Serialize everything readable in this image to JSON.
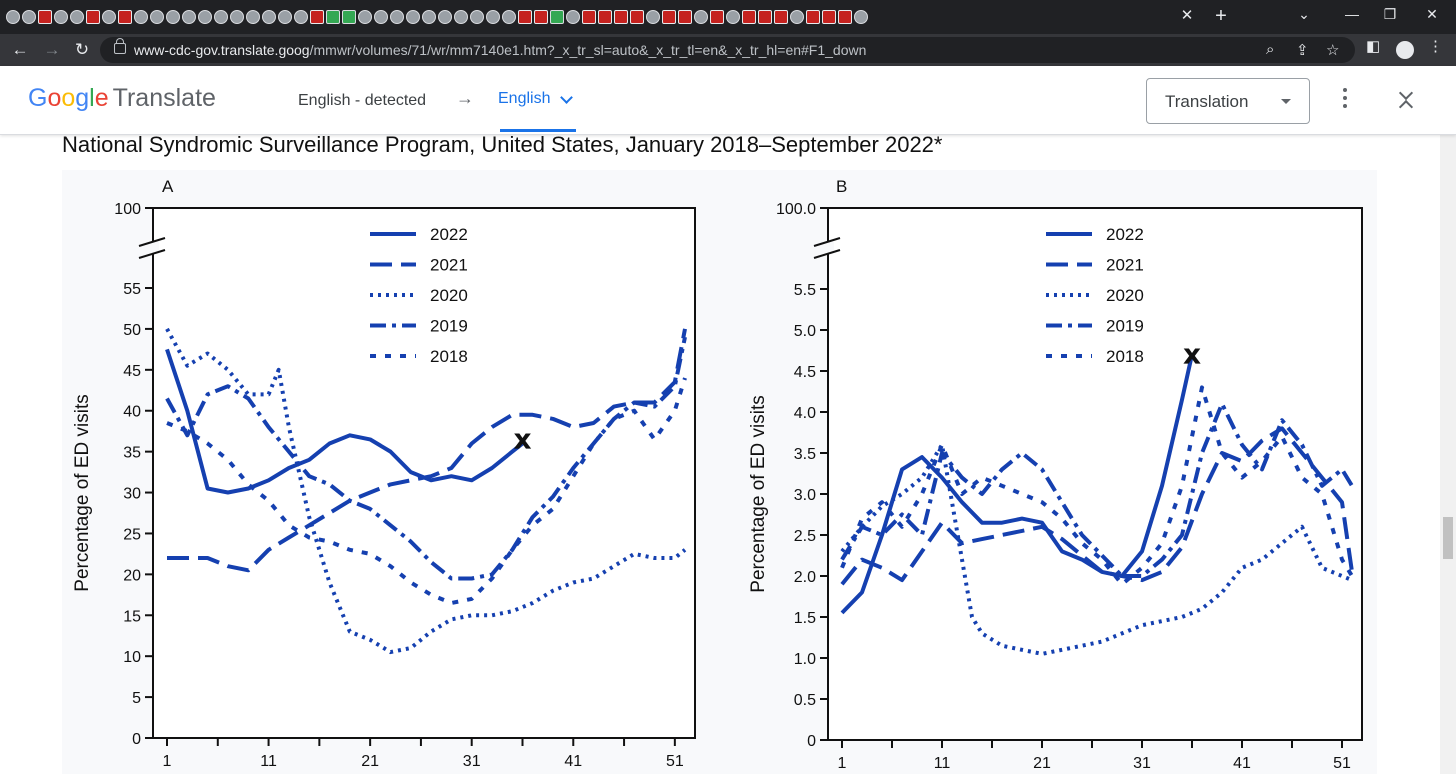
{
  "browser": {
    "tab_favicons": [
      "globe",
      "globe",
      "b",
      "globe",
      "globe",
      "b",
      "globe",
      "b",
      "globe",
      "globe",
      "globe",
      "globe",
      "globe",
      "globe",
      "globe",
      "globe",
      "globe",
      "globe",
      "globe",
      "yt",
      "green",
      "green",
      "globe",
      "globe",
      "globe",
      "globe",
      "globe",
      "globe",
      "globe",
      "globe",
      "globe",
      "globe",
      "b",
      "yt",
      "green",
      "globe",
      "b",
      "b",
      "b",
      "b",
      "globe",
      "b",
      "b",
      "globe",
      "b",
      "globe",
      "b",
      "b",
      "b",
      "globe",
      "b",
      "yt",
      "b",
      "globe"
    ],
    "new_tab": "+",
    "close_tab": "✕",
    "url_host": "www-cdc-gov.translate.goog",
    "url_path": "/mmwr/volumes/71/wr/mm7140e1.htm?_x_tr_sl=auto&_x_tr_tl=en&_x_tr_hl=en#F1_down"
  },
  "translate_bar": {
    "logo_word": "Translate",
    "source_language": "English - detected",
    "arrow": "→",
    "target_language": "English",
    "mode_select": "Translation"
  },
  "page": {
    "heading": "National Syndromic Surveillance Program, United States, January 2018–September 2022*"
  },
  "chart_data": [
    {
      "panel_label": "A",
      "type": "line",
      "ylabel": "Percentage of ED visits",
      "ylim": [
        0,
        55
      ],
      "y_break_top": "100",
      "y_ticks": [
        "0",
        "5",
        "10",
        "15",
        "20",
        "25",
        "30",
        "35",
        "40",
        "45",
        "50",
        "55"
      ],
      "xlim": [
        1,
        52
      ],
      "x_ticks": [
        "1",
        "11",
        "21",
        "31",
        "41",
        "51"
      ],
      "legend": {
        "placement": "top-center"
      },
      "marker": {
        "label": "x",
        "x": 36,
        "y": 36.5
      },
      "series": [
        {
          "name": "2022",
          "style": "solid",
          "x": [
            1,
            3,
            5,
            7,
            9,
            11,
            13,
            15,
            17,
            19,
            21,
            23,
            25,
            27,
            29,
            31,
            33,
            35,
            36
          ],
          "y": [
            47.5,
            40,
            30.5,
            30,
            30.5,
            31.5,
            33,
            34,
            36,
            37,
            36.5,
            35,
            32.5,
            31.5,
            32,
            31.5,
            33,
            35,
            36
          ]
        },
        {
          "name": "2021",
          "style": "long-dash",
          "x": [
            1,
            3,
            5,
            7,
            9,
            11,
            13,
            15,
            17,
            19,
            21,
            23,
            25,
            27,
            29,
            31,
            33,
            35,
            37,
            39,
            41,
            43,
            45,
            47,
            49,
            51,
            52
          ],
          "y": [
            22,
            22,
            22,
            21,
            20.5,
            23,
            24.5,
            26,
            27.5,
            29,
            30,
            31,
            31.5,
            32,
            33,
            36,
            38,
            39.5,
            39.5,
            39,
            38,
            38.5,
            40.5,
            41,
            41,
            43.5,
            50
          ]
        },
        {
          "name": "2020",
          "style": "dotted",
          "x": [
            1,
            3,
            5,
            7,
            9,
            11,
            12,
            13,
            15,
            17,
            19,
            21,
            23,
            25,
            27,
            29,
            31,
            33,
            35,
            37,
            39,
            41,
            43,
            45,
            47,
            49,
            51,
            52
          ],
          "y": [
            50,
            45.5,
            47,
            45,
            42,
            42,
            45,
            38,
            27,
            19,
            13,
            12,
            10.5,
            11,
            13,
            14.5,
            15,
            15,
            15.5,
            16.5,
            18,
            19,
            19.5,
            21,
            22.5,
            22,
            22,
            23
          ]
        },
        {
          "name": "2019",
          "style": "dash-dot",
          "x": [
            1,
            3,
            5,
            7,
            9,
            11,
            13,
            15,
            17,
            19,
            21,
            23,
            25,
            27,
            29,
            31,
            33,
            35,
            37,
            39,
            41,
            43,
            45,
            47,
            49,
            51,
            52
          ],
          "y": [
            41.5,
            37,
            42,
            43,
            41.5,
            38,
            35,
            32,
            31,
            29,
            28,
            26,
            24,
            21.5,
            19.5,
            19.5,
            20,
            23,
            27,
            29.5,
            33,
            36,
            39,
            41,
            40.5,
            43,
            49
          ]
        },
        {
          "name": "2018",
          "style": "short-dash",
          "x": [
            1,
            3,
            5,
            7,
            9,
            11,
            13,
            15,
            17,
            19,
            21,
            23,
            25,
            27,
            29,
            31,
            33,
            35,
            37,
            39,
            41,
            43,
            45,
            47,
            49,
            51,
            52
          ],
          "y": [
            38.5,
            37.5,
            36,
            34,
            31,
            29,
            26,
            24.5,
            24,
            23,
            22.5,
            21,
            19,
            17.5,
            16.5,
            17,
            19.5,
            23,
            26,
            28,
            32,
            36,
            39,
            40,
            36.5,
            40,
            44
          ]
        }
      ]
    },
    {
      "panel_label": "B",
      "type": "line",
      "ylabel": "Percentage of ED visits",
      "ylim": [
        0,
        5.5
      ],
      "y_break_top": "100.0",
      "y_ticks": [
        "0",
        "0.5",
        "1.0",
        "1.5",
        "2.0",
        "2.5",
        "3.0",
        "3.5",
        "4.0",
        "4.5",
        "5.0",
        "5.5"
      ],
      "xlim": [
        1,
        52
      ],
      "x_ticks": [
        "1",
        "11",
        "21",
        "31",
        "41",
        "51"
      ],
      "legend": {
        "placement": "top-center"
      },
      "marker": {
        "label": "x",
        "x": 36,
        "y": 4.7
      },
      "series": [
        {
          "name": "2022",
          "style": "solid",
          "x": [
            1,
            3,
            5,
            7,
            9,
            11,
            13,
            15,
            17,
            19,
            21,
            23,
            25,
            27,
            29,
            31,
            33,
            35,
            36
          ],
          "y": [
            1.55,
            1.8,
            2.5,
            3.3,
            3.45,
            3.2,
            2.9,
            2.65,
            2.65,
            2.7,
            2.65,
            2.3,
            2.2,
            2.05,
            2.0,
            2.3,
            3.1,
            4.15,
            4.7
          ]
        },
        {
          "name": "2021",
          "style": "long-dash",
          "x": [
            1,
            3,
            5,
            7,
            9,
            11,
            13,
            15,
            17,
            19,
            21,
            23,
            25,
            27,
            29,
            31,
            33,
            35,
            37,
            39,
            41,
            43,
            45,
            47,
            49,
            51,
            52
          ],
          "y": [
            1.9,
            2.2,
            2.1,
            1.95,
            2.3,
            2.65,
            2.4,
            2.45,
            2.5,
            2.55,
            2.6,
            2.45,
            2.25,
            2.05,
            2.0,
            1.95,
            2.05,
            2.35,
            3.0,
            3.5,
            3.4,
            3.65,
            3.8,
            3.5,
            3.2,
            2.9,
            2.05
          ]
        },
        {
          "name": "2020",
          "style": "dotted",
          "x": [
            1,
            3,
            5,
            7,
            9,
            11,
            13,
            14,
            15,
            17,
            19,
            21,
            23,
            25,
            27,
            29,
            31,
            33,
            35,
            37,
            39,
            41,
            43,
            45,
            47,
            49,
            51,
            52
          ],
          "y": [
            2.3,
            2.6,
            2.85,
            3.0,
            3.2,
            3.6,
            2.2,
            1.5,
            1.3,
            1.15,
            1.1,
            1.05,
            1.1,
            1.15,
            1.2,
            1.3,
            1.4,
            1.45,
            1.5,
            1.6,
            1.8,
            2.1,
            2.2,
            2.4,
            2.6,
            2.1,
            2.0,
            1.95
          ]
        },
        {
          "name": "2019",
          "style": "dash-dot",
          "x": [
            1,
            3,
            5,
            7,
            9,
            11,
            13,
            15,
            17,
            19,
            21,
            23,
            25,
            27,
            29,
            31,
            33,
            35,
            37,
            39,
            41,
            43,
            45,
            47,
            49,
            51,
            52
          ],
          "y": [
            2.2,
            2.6,
            2.5,
            2.75,
            2.5,
            3.5,
            3.2,
            3.0,
            3.3,
            3.5,
            3.3,
            2.9,
            2.5,
            2.25,
            2.0,
            2.0,
            2.2,
            2.5,
            3.5,
            4.1,
            3.6,
            3.3,
            3.9,
            3.6,
            3.1,
            3.3,
            3.1
          ]
        },
        {
          "name": "2018",
          "style": "short-dash",
          "x": [
            1,
            3,
            5,
            7,
            9,
            11,
            13,
            15,
            17,
            19,
            21,
            23,
            25,
            27,
            29,
            31,
            33,
            35,
            37,
            39,
            41,
            43,
            45,
            47,
            49,
            51,
            52
          ],
          "y": [
            2.1,
            2.7,
            2.9,
            2.6,
            3.0,
            3.6,
            3.0,
            3.2,
            3.1,
            3.0,
            2.9,
            2.7,
            2.4,
            2.2,
            1.9,
            2.1,
            2.4,
            3.1,
            4.3,
            3.5,
            3.2,
            3.4,
            3.7,
            3.2,
            3.0,
            2.2,
            2.0
          ]
        }
      ]
    }
  ]
}
